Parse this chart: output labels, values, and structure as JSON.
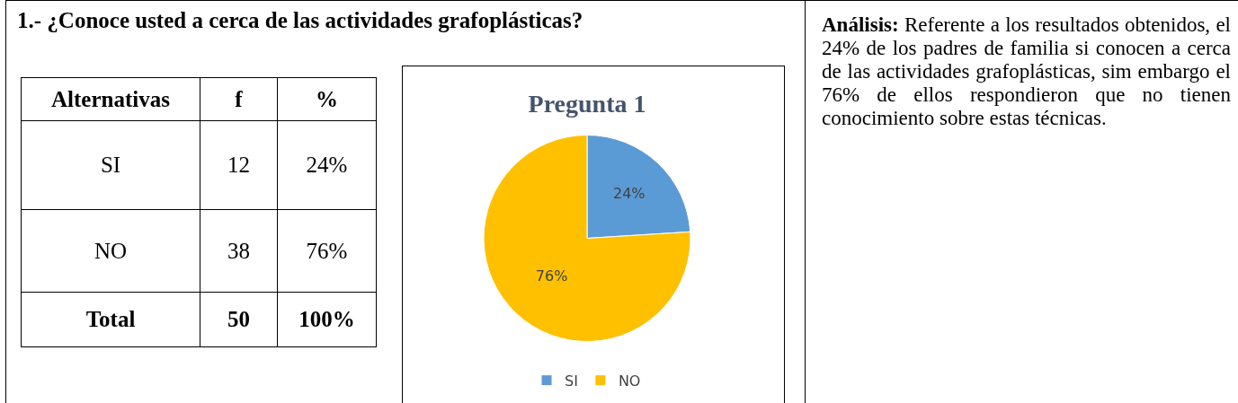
{
  "chart_data": [
    {
      "type": "other",
      "title": "1.- ¿Conoce usted a cerca de las actividades grafoplásticas?",
      "annotations": [
        "Alternativas",
        "f",
        "%",
        "SI",
        "12",
        "24%",
        "NO",
        "38",
        "76%",
        "Total",
        "50",
        "100%"
      ]
    },
    {
      "type": "pie",
      "title": "Pregunta 1",
      "categories": [
        "SI",
        "NO"
      ],
      "values": [
        24,
        76
      ],
      "colors": [
        "#5b9bd5",
        "#ffc000"
      ],
      "value_labels": [
        "24%",
        "76%"
      ],
      "legend": "bottom"
    },
    {
      "type": "other",
      "title": "Análisis:",
      "annotations": [
        "Referente a los resultados obtenidos, el 24% de los padres de familia si conocen a cerca de las actividades grafoplásticas, sim embargo el 76% de ellos respondieron que no tienen conocimiento sobre estas técnicas."
      ]
    }
  ]
}
